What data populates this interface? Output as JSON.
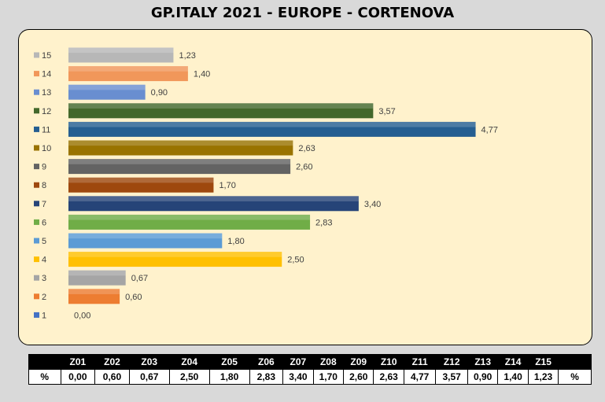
{
  "title": "GP.ITALY 2021 - EUROPE - CORTENOVA",
  "chart_data": {
    "type": "bar",
    "orientation": "horizontal",
    "title": "GP.ITALY 2021 - EUROPE - CORTENOVA",
    "categories": [
      "1",
      "2",
      "3",
      "4",
      "5",
      "6",
      "7",
      "8",
      "9",
      "10",
      "11",
      "12",
      "13",
      "14",
      "15"
    ],
    "values": [
      0.0,
      0.6,
      0.67,
      2.5,
      1.8,
      2.83,
      3.4,
      1.7,
      2.6,
      2.63,
      4.77,
      3.57,
      0.9,
      1.4,
      1.23
    ],
    "value_labels": [
      "0,00",
      "0,60",
      "0,67",
      "2,50",
      "1,80",
      "2,83",
      "3,40",
      "1,70",
      "2,60",
      "2,63",
      "4,77",
      "3,57",
      "0,90",
      "1,40",
      "1,23"
    ],
    "colors": [
      "#4472c4",
      "#ed7d31",
      "#a5a5a5",
      "#ffc000",
      "#5b9bd5",
      "#70ad47",
      "#264478",
      "#9e480e",
      "#636363",
      "#997300",
      "#255e91",
      "#43682b",
      "#698ed0",
      "#f1975a",
      "#b7b7b7"
    ],
    "xlim": [
      0,
      5
    ],
    "grid": false,
    "legend": "left"
  },
  "table": {
    "headers": [
      "",
      "Z01",
      "Z02",
      "Z03",
      "Z04",
      "Z05",
      "Z06",
      "Z07",
      "Z08",
      "Z09",
      "Z10",
      "Z11",
      "Z12",
      "Z13",
      "Z14",
      "Z15",
      ""
    ],
    "row": [
      "%",
      "0,00",
      "0,60",
      "0,67",
      "2,50",
      "1,80",
      "2,83",
      "3,40",
      "1,70",
      "2,60",
      "2,63",
      "4,77",
      "3,57",
      "0,90",
      "1,40",
      "1,23",
      "%"
    ]
  }
}
